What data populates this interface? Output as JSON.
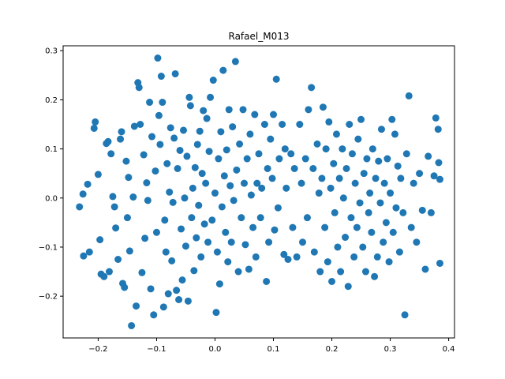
{
  "chart_data": {
    "type": "scatter",
    "title": "Rafael_M013",
    "xlabel": "",
    "ylabel": "",
    "xlim": [
      -0.26,
      0.41
    ],
    "ylim": [
      -0.285,
      0.31
    ],
    "xticks": [
      -0.2,
      -0.1,
      0.0,
      0.1,
      0.2,
      0.3,
      0.4
    ],
    "xtick_labels": [
      "−0.2",
      "−0.1",
      "0.0",
      "0.1",
      "0.2",
      "0.3",
      "0.4"
    ],
    "yticks": [
      -0.2,
      -0.1,
      0.0,
      0.1,
      0.2,
      0.3
    ],
    "ytick_labels": [
      "−0.2",
      "−0.1",
      "0.0",
      "0.1",
      "0.2",
      "0.3"
    ],
    "grid": false,
    "marker_color": "#1f77b4",
    "series": [
      {
        "points": [
          [
            -0.232,
            -0.018
          ],
          [
            -0.226,
            0.008
          ],
          [
            -0.218,
            0.028
          ],
          [
            -0.225,
            -0.118
          ],
          [
            -0.215,
            -0.11
          ],
          [
            -0.205,
            0.155
          ],
          [
            -0.207,
            0.142
          ],
          [
            -0.2,
            0.048
          ],
          [
            -0.197,
            -0.085
          ],
          [
            -0.195,
            -0.155
          ],
          [
            -0.19,
            -0.16
          ],
          [
            -0.186,
            0.111
          ],
          [
            -0.183,
            0.115
          ],
          [
            -0.181,
            -0.15
          ],
          [
            -0.178,
            0.09
          ],
          [
            -0.175,
            0.003
          ],
          [
            -0.172,
            -0.018
          ],
          [
            -0.17,
            -0.061
          ],
          [
            -0.166,
            -0.125
          ],
          [
            -0.162,
            0.12
          ],
          [
            -0.16,
            0.135
          ],
          [
            -0.158,
            -0.174
          ],
          [
            -0.155,
            -0.182
          ],
          [
            -0.152,
            0.075
          ],
          [
            -0.15,
            -0.04
          ],
          [
            -0.148,
            0.042
          ],
          [
            -0.146,
            -0.108
          ],
          [
            -0.143,
            -0.26
          ],
          [
            -0.14,
            0.002
          ],
          [
            -0.138,
            0.146
          ],
          [
            -0.135,
            -0.22
          ],
          [
            -0.132,
            0.235
          ],
          [
            -0.13,
            0.225
          ],
          [
            -0.128,
            0.15
          ],
          [
            -0.125,
            -0.152
          ],
          [
            -0.122,
            0.088
          ],
          [
            -0.12,
            -0.082
          ],
          [
            -0.117,
            0.031
          ],
          [
            -0.115,
            -0.005
          ],
          [
            -0.112,
            0.195
          ],
          [
            -0.11,
            -0.185
          ],
          [
            -0.108,
            0.125
          ],
          [
            -0.105,
            -0.238
          ],
          [
            -0.102,
            0.055
          ],
          [
            -0.1,
            -0.07
          ],
          [
            -0.098,
            0.285
          ],
          [
            -0.096,
            0.168
          ],
          [
            -0.094,
            0.109
          ],
          [
            -0.092,
            0.248
          ],
          [
            -0.09,
            0.195
          ],
          [
            -0.088,
            -0.222
          ],
          [
            -0.086,
            -0.045
          ],
          [
            -0.084,
            -0.11
          ],
          [
            -0.082,
            0.07
          ],
          [
            -0.08,
            -0.195
          ],
          [
            -0.078,
            0.012
          ],
          [
            -0.076,
            0.143
          ],
          [
            -0.074,
            -0.128
          ],
          [
            -0.072,
            -0.009
          ],
          [
            -0.07,
            0.122
          ],
          [
            -0.068,
            0.253
          ],
          [
            -0.066,
            -0.188
          ],
          [
            -0.064,
            0.06
          ],
          [
            -0.062,
            -0.207
          ],
          [
            -0.06,
            0.097
          ],
          [
            -0.058,
            -0.063
          ],
          [
            -0.056,
            -0.167
          ],
          [
            -0.054,
            0.138
          ],
          [
            -0.052,
            0.0
          ],
          [
            -0.05,
            -0.098
          ],
          [
            -0.048,
            0.085
          ],
          [
            -0.046,
            -0.21
          ],
          [
            -0.044,
            0.205
          ],
          [
            -0.042,
            0.188
          ],
          [
            -0.04,
            -0.04
          ],
          [
            -0.038,
            0.02
          ],
          [
            -0.036,
            -0.148
          ],
          [
            -0.034,
            0.062
          ],
          [
            -0.032,
            -0.081
          ],
          [
            -0.03,
            0.109
          ],
          [
            -0.028,
            -0.015
          ],
          [
            -0.026,
            0.136
          ],
          [
            -0.024,
            -0.12
          ],
          [
            -0.022,
            0.05
          ],
          [
            -0.02,
            0.178
          ],
          [
            -0.018,
            -0.053
          ],
          [
            -0.016,
            0.03
          ],
          [
            -0.014,
            0.162
          ],
          [
            -0.012,
            -0.09
          ],
          [
            -0.01,
            0.095
          ],
          [
            -0.008,
            0.205
          ],
          [
            -0.005,
            -0.045
          ],
          [
            -0.003,
            0.24
          ],
          [
            0.0,
            0.01
          ],
          [
            0.002,
            -0.233
          ],
          [
            0.004,
            -0.11
          ],
          [
            0.006,
            0.08
          ],
          [
            0.008,
            -0.175
          ],
          [
            0.01,
            0.135
          ],
          [
            0.012,
            -0.018
          ],
          [
            0.014,
            0.26
          ],
          [
            0.016,
            0.045
          ],
          [
            0.018,
            -0.07
          ],
          [
            0.02,
            0.098
          ],
          [
            0.022,
            -0.13
          ],
          [
            0.024,
            0.18
          ],
          [
            0.026,
            0.025
          ],
          [
            0.028,
            -0.09
          ],
          [
            0.03,
            0.145
          ],
          [
            0.032,
            -0.005
          ],
          [
            0.035,
            0.278
          ],
          [
            0.037,
            0.057
          ],
          [
            0.04,
            -0.15
          ],
          [
            0.042,
            0.11
          ],
          [
            0.045,
            -0.04
          ],
          [
            0.048,
            0.18
          ],
          [
            0.05,
            0.03
          ],
          [
            0.052,
            -0.095
          ],
          [
            0.055,
            0.08
          ],
          [
            0.058,
            -0.145
          ],
          [
            0.06,
            0.13
          ],
          [
            0.062,
            0.006
          ],
          [
            0.065,
            -0.06
          ],
          [
            0.068,
            0.17
          ],
          [
            0.07,
            -0.12
          ],
          [
            0.072,
            0.03
          ],
          [
            0.075,
            0.09
          ],
          [
            0.078,
            -0.04
          ],
          [
            0.08,
            0.02
          ],
          [
            0.085,
            0.15
          ],
          [
            0.088,
            -0.17
          ],
          [
            0.09,
            0.06
          ],
          [
            0.092,
            -0.09
          ],
          [
            0.095,
            0.12
          ],
          [
            0.098,
            0.04
          ],
          [
            0.1,
            0.17
          ],
          [
            0.102,
            -0.065
          ],
          [
            0.105,
            0.242
          ],
          [
            0.108,
            -0.02
          ],
          [
            0.11,
            0.08
          ],
          [
            0.115,
            0.15
          ],
          [
            0.118,
            -0.115
          ],
          [
            0.12,
            0.1
          ],
          [
            0.122,
            0.02
          ],
          [
            0.125,
            -0.125
          ],
          [
            0.13,
            0.09
          ],
          [
            0.133,
            -0.06
          ],
          [
            0.136,
            0.06
          ],
          [
            0.14,
            -0.12
          ],
          [
            0.145,
            0.15
          ],
          [
            0.148,
            0.03
          ],
          [
            0.15,
            -0.09
          ],
          [
            0.155,
            0.08
          ],
          [
            0.158,
            -0.04
          ],
          [
            0.16,
            0.18
          ],
          [
            0.165,
            0.225
          ],
          [
            0.168,
            0.06
          ],
          [
            0.17,
            -0.11
          ],
          [
            0.175,
            0.11
          ],
          [
            0.178,
            0.01
          ],
          [
            0.18,
            -0.15
          ],
          [
            0.183,
            0.04
          ],
          [
            0.185,
            0.185
          ],
          [
            0.188,
            -0.06
          ],
          [
            0.19,
            0.1
          ],
          [
            0.193,
            -0.13
          ],
          [
            0.195,
            0.155
          ],
          [
            0.198,
            0.02
          ],
          [
            0.2,
            -0.17
          ],
          [
            0.203,
            0.07
          ],
          [
            0.205,
            -0.03
          ],
          [
            0.208,
            0.13
          ],
          [
            0.21,
            -0.1
          ],
          [
            0.213,
            0.04
          ],
          [
            0.215,
            -0.15
          ],
          [
            0.218,
            0.1
          ],
          [
            0.22,
            0.0
          ],
          [
            0.223,
            -0.08
          ],
          [
            0.225,
            0.06
          ],
          [
            0.228,
            -0.18
          ],
          [
            0.23,
            0.15
          ],
          [
            0.233,
            -0.04
          ],
          [
            0.235,
            0.09
          ],
          [
            0.238,
            -0.12
          ],
          [
            0.24,
            0.03
          ],
          [
            0.243,
            -0.06
          ],
          [
            0.245,
            0.12
          ],
          [
            0.248,
            -0.01
          ],
          [
            0.25,
            0.16
          ],
          [
            0.253,
            -0.1
          ],
          [
            0.255,
            0.05
          ],
          [
            0.258,
            -0.15
          ],
          [
            0.26,
            0.08
          ],
          [
            0.263,
            -0.03
          ],
          [
            0.265,
            0.01
          ],
          [
            0.268,
            -0.07
          ],
          [
            0.27,
            0.1
          ],
          [
            0.273,
            -0.16
          ],
          [
            0.275,
            0.04
          ],
          [
            0.278,
            -0.12
          ],
          [
            0.28,
            0.075
          ],
          [
            0.283,
            -0.01
          ],
          [
            0.285,
            0.14
          ],
          [
            0.288,
            -0.09
          ],
          [
            0.29,
            0.03
          ],
          [
            0.293,
            -0.05
          ],
          [
            0.295,
            0.08
          ],
          [
            0.298,
            -0.13
          ],
          [
            0.3,
            0.01
          ],
          [
            0.303,
            0.16
          ],
          [
            0.305,
            -0.07
          ],
          [
            0.308,
            0.13
          ],
          [
            0.31,
            -0.02
          ],
          [
            0.313,
            0.065
          ],
          [
            0.316,
            -0.11
          ],
          [
            0.318,
            0.04
          ],
          [
            0.322,
            -0.03
          ],
          [
            0.325,
            -0.238
          ],
          [
            0.328,
            0.09
          ],
          [
            0.332,
            0.208
          ],
          [
            0.336,
            -0.06
          ],
          [
            0.34,
            0.03
          ],
          [
            0.345,
            -0.09
          ],
          [
            0.35,
            0.05
          ],
          [
            0.355,
            -0.025
          ],
          [
            0.36,
            -0.145
          ],
          [
            0.365,
            0.085
          ],
          [
            0.37,
            -0.03
          ],
          [
            0.375,
            0.045
          ],
          [
            0.378,
            0.163
          ],
          [
            0.382,
            0.14
          ],
          [
            0.383,
            0.072
          ],
          [
            0.385,
            -0.133
          ],
          [
            0.385,
            0.038
          ]
        ]
      }
    ]
  }
}
